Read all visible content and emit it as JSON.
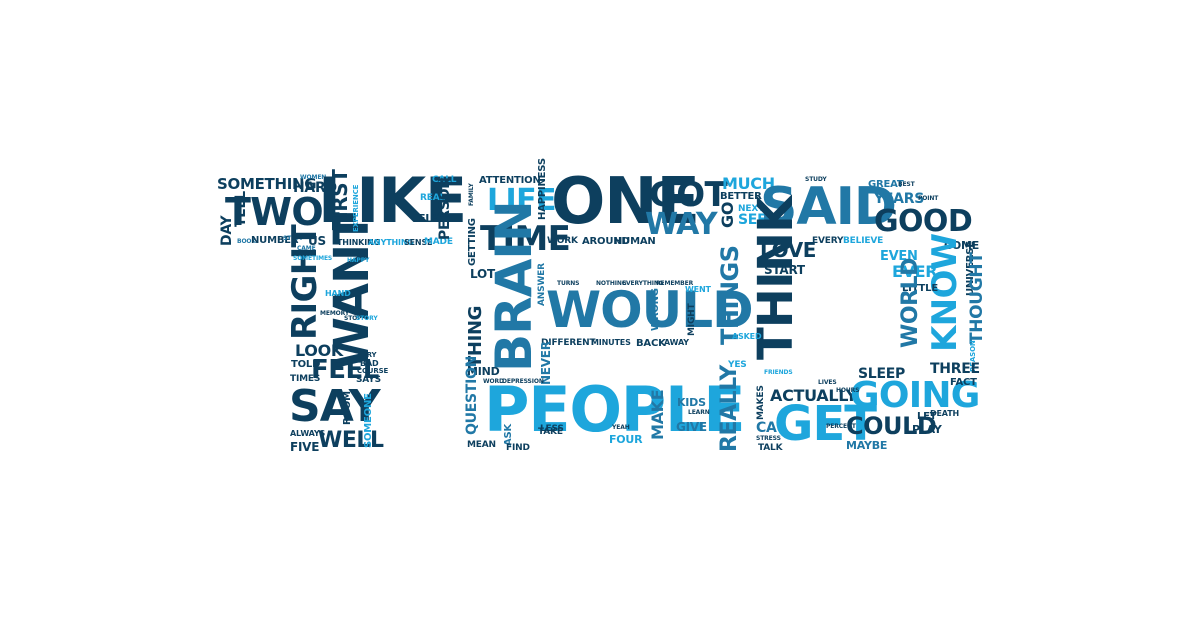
{
  "palette": {
    "dark": "#0d3f5e",
    "mid": "#2178a6",
    "light": "#1ea6dc",
    "pale": "#3cb4e6"
  },
  "words": [
    {
      "text": "SOMETHING",
      "tone": "dark"
    },
    {
      "text": "HARD",
      "tone": "dark"
    },
    {
      "text": "WOMEN",
      "tone": "mid"
    },
    {
      "text": "TWO",
      "tone": "dark"
    },
    {
      "text": "LIKE",
      "tone": "dark"
    },
    {
      "text": "DAY",
      "tone": "dark"
    },
    {
      "text": "TELL",
      "tone": "dark"
    },
    {
      "text": "BOOK",
      "tone": "mid"
    },
    {
      "text": "NUMBER",
      "tone": "dark"
    },
    {
      "text": "STUFF",
      "tone": "mid"
    },
    {
      "text": "US",
      "tone": "dark"
    },
    {
      "text": "CAME",
      "tone": "mid"
    },
    {
      "text": "RIGHT",
      "tone": "dark"
    },
    {
      "text": "WANT",
      "tone": "dark"
    },
    {
      "text": "SOMETIMES",
      "tone": "light"
    },
    {
      "text": "LOOK",
      "tone": "dark"
    },
    {
      "text": "FEEL",
      "tone": "dark"
    },
    {
      "text": "TOLD",
      "tone": "dark"
    },
    {
      "text": "TIMES",
      "tone": "dark"
    },
    {
      "text": "SAY",
      "tone": "dark"
    },
    {
      "text": "WELL",
      "tone": "dark"
    },
    {
      "text": "ALWAYS",
      "tone": "dark"
    },
    {
      "text": "FIVE",
      "tone": "dark"
    },
    {
      "text": "FIRST",
      "tone": "dark"
    },
    {
      "text": "EXPERIENCE",
      "tone": "light"
    },
    {
      "text": "THINKING",
      "tone": "dark"
    },
    {
      "text": "ANYTHING",
      "tone": "light"
    },
    {
      "text": "SENSE",
      "tone": "dark"
    },
    {
      "text": "MADE",
      "tone": "light"
    },
    {
      "text": "CALL",
      "tone": "light"
    },
    {
      "text": "REAL",
      "tone": "light"
    },
    {
      "text": "ELSE",
      "tone": "dark"
    },
    {
      "text": "PERSON",
      "tone": "dark"
    },
    {
      "text": "HAPPY",
      "tone": "light"
    },
    {
      "text": "HAND",
      "tone": "light"
    },
    {
      "text": "MEMORY",
      "tone": "dark"
    },
    {
      "text": "STOP",
      "tone": "dark"
    },
    {
      "text": "STORY",
      "tone": "light"
    },
    {
      "text": "TRY",
      "tone": "dark"
    },
    {
      "text": "BAD",
      "tone": "dark"
    },
    {
      "text": "COURSE",
      "tone": "dark"
    },
    {
      "text": "SAYS",
      "tone": "dark"
    },
    {
      "text": "ROOM",
      "tone": "dark"
    },
    {
      "text": "SOMEONE",
      "tone": "light"
    },
    {
      "text": "ATTENTION",
      "tone": "dark"
    },
    {
      "text": "FAMILY",
      "tone": "dark"
    },
    {
      "text": "LIFE",
      "tone": "light"
    },
    {
      "text": "HAPPINESS",
      "tone": "dark"
    },
    {
      "text": "ONE",
      "tone": "dark"
    },
    {
      "text": "GOT",
      "tone": "dark"
    },
    {
      "text": "WAY",
      "tone": "mid"
    },
    {
      "text": "TIME",
      "tone": "dark"
    },
    {
      "text": "WORK",
      "tone": "dark"
    },
    {
      "text": "AROUND",
      "tone": "dark"
    },
    {
      "text": "HUMAN",
      "tone": "dark"
    },
    {
      "text": "GETTING",
      "tone": "dark"
    },
    {
      "text": "LOT",
      "tone": "dark"
    },
    {
      "text": "BRAIN",
      "tone": "mid"
    },
    {
      "text": "ANSWER",
      "tone": "mid"
    },
    {
      "text": "TURNS",
      "tone": "dark"
    },
    {
      "text": "NOTHING",
      "tone": "dark"
    },
    {
      "text": "EVERYTHING",
      "tone": "dark"
    },
    {
      "text": "REMEMBER",
      "tone": "dark"
    },
    {
      "text": "WOULD",
      "tone": "mid"
    },
    {
      "text": "WRONG",
      "tone": "mid"
    },
    {
      "text": "WENT",
      "tone": "light"
    },
    {
      "text": "MIGHT",
      "tone": "dark"
    },
    {
      "text": "THING",
      "tone": "dark"
    },
    {
      "text": "MIND",
      "tone": "dark"
    },
    {
      "text": "DIFFERENT",
      "tone": "dark"
    },
    {
      "text": "MINUTES",
      "tone": "dark"
    },
    {
      "text": "BACK",
      "tone": "dark"
    },
    {
      "text": "AWAY",
      "tone": "dark"
    },
    {
      "text": "NEVER",
      "tone": "mid"
    },
    {
      "text": "WORD",
      "tone": "dark"
    },
    {
      "text": "DEPRESSION",
      "tone": "dark"
    },
    {
      "text": "QUESTION",
      "tone": "mid"
    },
    {
      "text": "PEOPLE",
      "tone": "light"
    },
    {
      "text": "LESS",
      "tone": "dark"
    },
    {
      "text": "TAKE",
      "tone": "dark"
    },
    {
      "text": "ASK",
      "tone": "mid"
    },
    {
      "text": "MEAN",
      "tone": "dark"
    },
    {
      "text": "FIND",
      "tone": "dark"
    },
    {
      "text": "KIDS",
      "tone": "mid"
    },
    {
      "text": "MAKE",
      "tone": "mid"
    },
    {
      "text": "GIVE",
      "tone": "mid"
    },
    {
      "text": "FOUR",
      "tone": "light"
    },
    {
      "text": "YEAH",
      "tone": "dark"
    },
    {
      "text": "LEARN",
      "tone": "dark"
    },
    {
      "text": "MUCH",
      "tone": "light"
    },
    {
      "text": "BETTER",
      "tone": "dark"
    },
    {
      "text": "GO",
      "tone": "dark"
    },
    {
      "text": "NEXT",
      "tone": "light"
    },
    {
      "text": "SEE",
      "tone": "light"
    },
    {
      "text": "SAID",
      "tone": "mid"
    },
    {
      "text": "STUDY",
      "tone": "dark"
    },
    {
      "text": "GREAT",
      "tone": "mid"
    },
    {
      "text": "BEST",
      "tone": "dark"
    },
    {
      "text": "YEARS",
      "tone": "mid"
    },
    {
      "text": "POINT",
      "tone": "dark"
    },
    {
      "text": "GOOD",
      "tone": "dark"
    },
    {
      "text": "LOVE",
      "tone": "dark"
    },
    {
      "text": "EVERY",
      "tone": "dark"
    },
    {
      "text": "BELIEVE",
      "tone": "light"
    },
    {
      "text": "COME",
      "tone": "dark"
    },
    {
      "text": "THINGS",
      "tone": "mid"
    },
    {
      "text": "THINK",
      "tone": "dark"
    },
    {
      "text": "START",
      "tone": "dark"
    },
    {
      "text": "EVEN",
      "tone": "light"
    },
    {
      "text": "EVER",
      "tone": "light"
    },
    {
      "text": "KNOW",
      "tone": "light"
    },
    {
      "text": "UNIVERSE",
      "tone": "dark"
    },
    {
      "text": "THOUGHT",
      "tone": "mid"
    },
    {
      "text": "LITTLE",
      "tone": "dark"
    },
    {
      "text": "WORLD",
      "tone": "mid"
    },
    {
      "text": "REASON",
      "tone": "light"
    },
    {
      "text": "REALLY",
      "tone": "mid"
    },
    {
      "text": "ASKED",
      "tone": "light"
    },
    {
      "text": "YES",
      "tone": "light"
    },
    {
      "text": "ACTUALLY",
      "tone": "dark"
    },
    {
      "text": "SLEEP",
      "tone": "dark"
    },
    {
      "text": "THREE",
      "tone": "dark"
    },
    {
      "text": "GOING",
      "tone": "light"
    },
    {
      "text": "FACT",
      "tone": "dark"
    },
    {
      "text": "GET",
      "tone": "light"
    },
    {
      "text": "COULD",
      "tone": "dark"
    },
    {
      "text": "CA",
      "tone": "mid"
    },
    {
      "text": "TALK",
      "tone": "dark"
    },
    {
      "text": "PERCENT",
      "tone": "dark"
    },
    {
      "text": "MAYBE",
      "tone": "mid"
    },
    {
      "text": "LET",
      "tone": "dark"
    },
    {
      "text": "DEATH",
      "tone": "dark"
    },
    {
      "text": "PLAY",
      "tone": "dark"
    },
    {
      "text": "MAKES",
      "tone": "dark"
    },
    {
      "text": "STRESS",
      "tone": "dark"
    },
    {
      "text": "LIVES",
      "tone": "dark"
    },
    {
      "text": "HOURS",
      "tone": "dark"
    },
    {
      "text": "FRIENDS",
      "tone": "light"
    }
  ]
}
